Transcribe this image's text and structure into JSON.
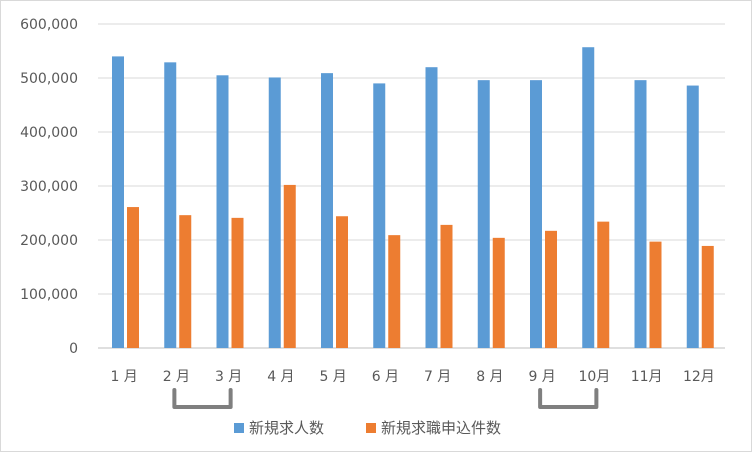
{
  "chart_data": {
    "type": "bar",
    "title": "",
    "xlabel": "",
    "ylabel": "",
    "categories": [
      "1 月",
      "2 月",
      "3 月",
      "4 月",
      "5 月",
      "6 月",
      "7 月",
      "8 月",
      "9 月",
      "10月",
      "11月",
      "12月"
    ],
    "series": [
      {
        "name": "新規求人数",
        "color": "#5b9bd5",
        "values": [
          540000,
          529000,
          505000,
          501000,
          509000,
          490000,
          520000,
          496000,
          496000,
          557000,
          496000,
          486000
        ]
      },
      {
        "name": "新規求職申込件数",
        "color": "#ed7d31",
        "values": [
          261000,
          246000,
          241000,
          302000,
          244000,
          209000,
          228000,
          204000,
          217000,
          234000,
          197000,
          189000
        ]
      }
    ],
    "ylim": [
      0,
      600000
    ],
    "yticks": [
      "0",
      "100,000",
      "200,000",
      "300,000",
      "400,000",
      "500,000",
      "600,000"
    ],
    "grid": true,
    "legend_position": "bottom",
    "annotations": [
      {
        "type": "bracket",
        "from_category": "2 月",
        "to_category": "3 月"
      },
      {
        "type": "bracket",
        "from_category": "9 月",
        "to_category": "10月"
      }
    ]
  }
}
